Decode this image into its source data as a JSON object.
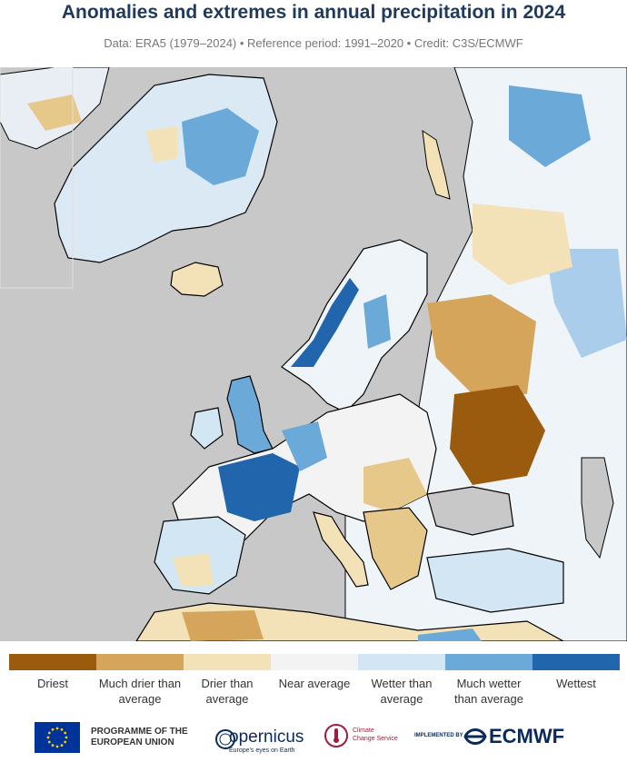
{
  "header": {
    "title": "Anomalies and extremes in annual precipitation in 2024",
    "subtitle": "Data: ERA5 (1979–2024) • Reference period: 1991–2020 • Credit: C3S/ECMWF"
  },
  "map": {
    "ocean_color": "#c8c8c8",
    "region": "Europe and surroundings"
  },
  "legend": {
    "items": [
      {
        "label": "Driest",
        "color": "#9a5b0f"
      },
      {
        "label": "Much drier than average",
        "color": "#d4a55a"
      },
      {
        "label": "Drier than average",
        "color": "#f3e2b8"
      },
      {
        "label": "Near average",
        "color": "#f3f3f3"
      },
      {
        "label": "Wetter than average",
        "color": "#d3e6f3"
      },
      {
        "label": "Much wetter than average",
        "color": "#6aa9d8"
      },
      {
        "label": "Wettest",
        "color": "#2166ac"
      }
    ]
  },
  "footer": {
    "eu_text": "PROGRAMME OF THE EUROPEAN UNION",
    "copernicus_text": "opernicus",
    "copernicus_sub": "Europe's eyes on Earth",
    "c3s_text": "Climate Change Service",
    "implemented_text": "IMPLEMENTED BY",
    "ecmwf_text": "ECMWF",
    "icons": [
      "eu-flag-icon",
      "copernicus-icon",
      "c3s-thermometer-icon",
      "ecmwf-icon"
    ]
  }
}
